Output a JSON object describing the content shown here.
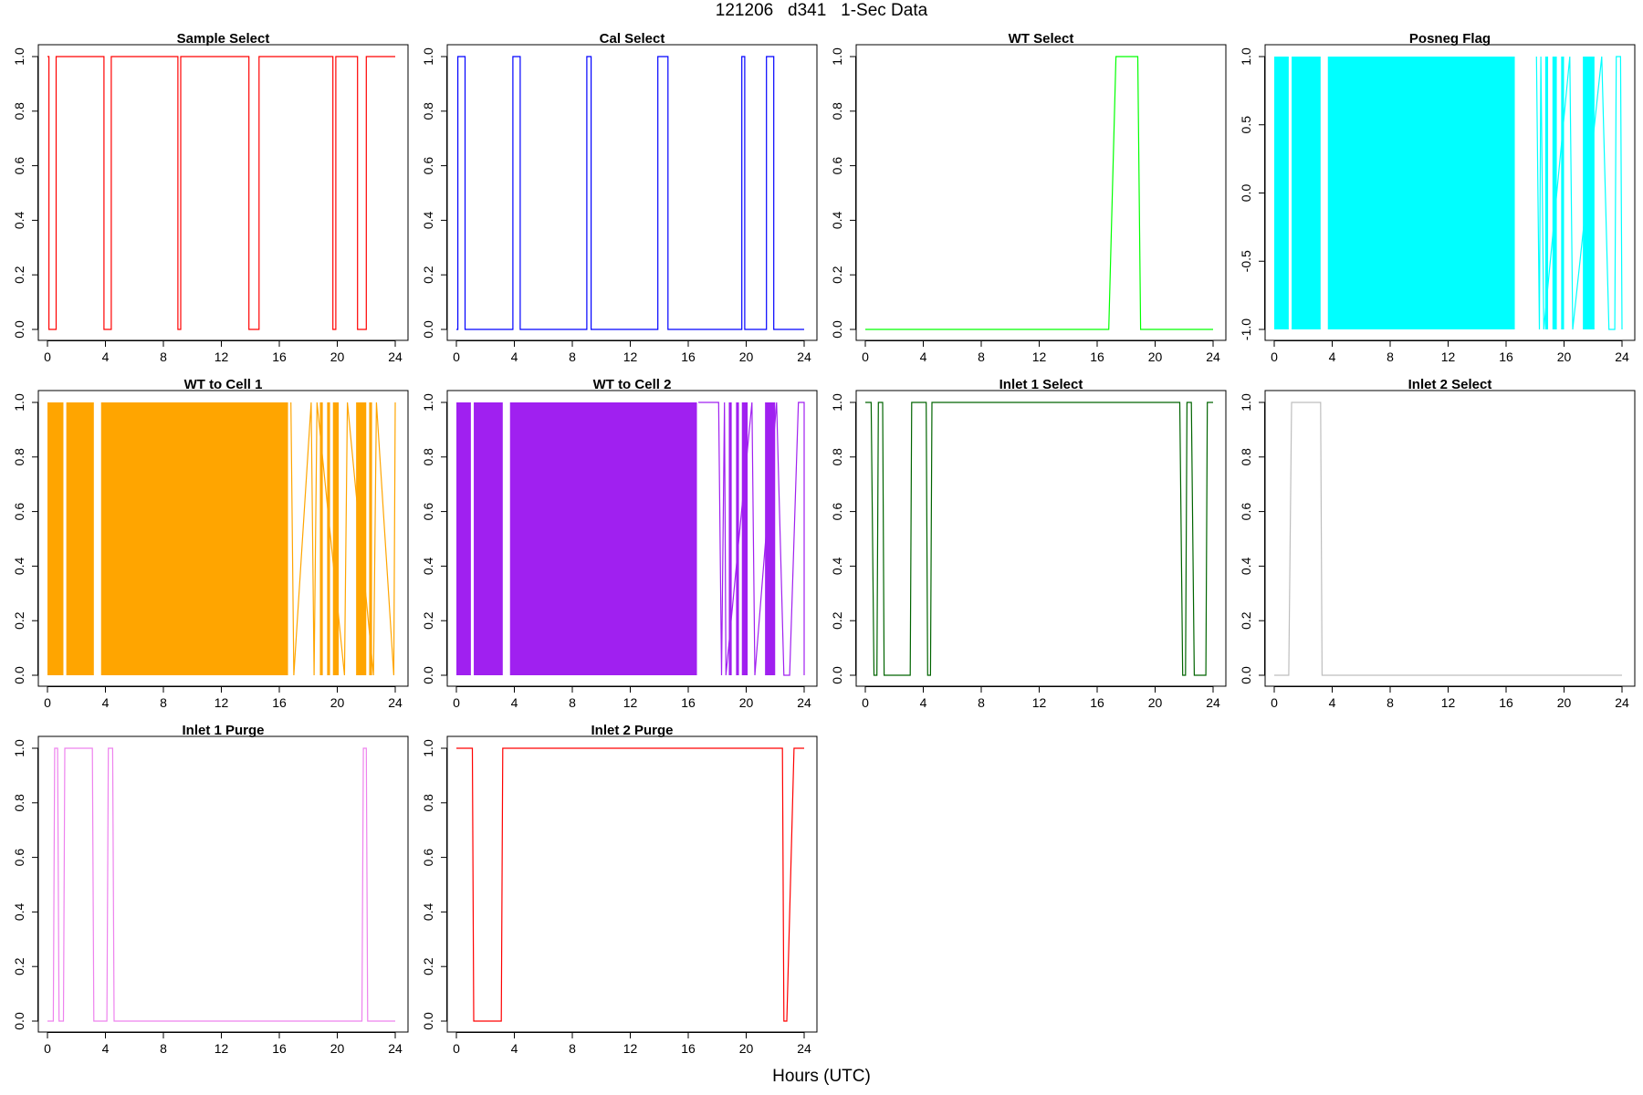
{
  "figure": {
    "title": "121206   d341   1-Sec Data",
    "xlabel": "Hours (UTC)"
  },
  "chart_data": [
    {
      "type": "line",
      "title": "Sample Select",
      "color": "#ff0000",
      "xlim": [
        0,
        24
      ],
      "xticks": [
        0,
        4,
        8,
        12,
        16,
        20,
        24
      ],
      "ylim": [
        0,
        1
      ],
      "yticks": [
        "0.0",
        "0.2",
        "0.4",
        "0.6",
        "0.8",
        "1.0"
      ],
      "x": [
        0,
        0.1,
        0.1,
        0.6,
        0.6,
        3.9,
        3.9,
        4.4,
        4.4,
        9.0,
        9.0,
        9.2,
        9.2,
        13.9,
        13.9,
        14.6,
        14.6,
        19.7,
        19.7,
        19.9,
        19.9,
        21.4,
        21.4,
        22.0,
        22.0,
        24
      ],
      "y": [
        1,
        1,
        0,
        0,
        1,
        1,
        0,
        0,
        1,
        1,
        0,
        0,
        1,
        1,
        0,
        0,
        1,
        1,
        0,
        0,
        1,
        1,
        0,
        0,
        1,
        1
      ]
    },
    {
      "type": "line",
      "title": "Cal Select",
      "color": "#0000ff",
      "xlim": [
        0,
        24
      ],
      "xticks": [
        0,
        4,
        8,
        12,
        16,
        20,
        24
      ],
      "ylim": [
        0,
        1
      ],
      "yticks": [
        "0.0",
        "0.2",
        "0.4",
        "0.6",
        "0.8",
        "1.0"
      ],
      "x": [
        0,
        0.1,
        0.1,
        0.6,
        0.6,
        3.9,
        3.9,
        4.4,
        4.4,
        9.0,
        9.0,
        9.3,
        9.3,
        13.9,
        13.9,
        14.6,
        14.6,
        19.7,
        19.7,
        19.9,
        19.9,
        21.4,
        21.4,
        21.9,
        21.9,
        24
      ],
      "y": [
        0,
        0,
        1,
        1,
        0,
        0,
        1,
        1,
        0,
        0,
        1,
        1,
        0,
        0,
        1,
        1,
        0,
        0,
        1,
        1,
        0,
        0,
        1,
        1,
        0,
        0
      ]
    },
    {
      "type": "line",
      "title": "WT Select",
      "color": "#00ff00",
      "xlim": [
        0,
        24
      ],
      "xticks": [
        0,
        4,
        8,
        12,
        16,
        20,
        24
      ],
      "ylim": [
        0,
        1
      ],
      "yticks": [
        "0.0",
        "0.2",
        "0.4",
        "0.6",
        "0.8",
        "1.0"
      ],
      "x": [
        0,
        16.8,
        17.3,
        18.8,
        19.0,
        24
      ],
      "y": [
        0,
        0,
        1,
        1,
        0,
        0
      ]
    },
    {
      "type": "area",
      "title": "Posneg Flag",
      "color": "#00ffff",
      "xlim": [
        0,
        24
      ],
      "xticks": [
        0,
        4,
        8,
        12,
        16,
        20,
        24
      ],
      "ylim": [
        -1,
        1
      ],
      "yticks": [
        "-1.0",
        "-0.5",
        "0.0",
        "0.5",
        "1.0"
      ],
      "bands": [
        [
          0,
          1.0
        ],
        [
          1.2,
          3.2
        ],
        [
          3.7,
          16.6
        ],
        [
          18.7,
          18.9
        ],
        [
          19.2,
          19.5
        ],
        [
          19.8,
          20.0
        ],
        [
          21.3,
          22.1
        ]
      ],
      "x": [
        18.1,
        18.3,
        18.4,
        18.6,
        20.4,
        20.6,
        22.6,
        23.1,
        23.5,
        23.6,
        23.9,
        24
      ],
      "y": [
        1,
        -1,
        1,
        -1,
        1,
        -1,
        1,
        -1,
        -1,
        1,
        1,
        -1
      ]
    },
    {
      "type": "area",
      "title": "WT to Cell 1",
      "color": "#ffa500",
      "xlim": [
        0,
        24
      ],
      "xticks": [
        0,
        4,
        8,
        12,
        16,
        20,
        24
      ],
      "ylim": [
        0,
        1
      ],
      "yticks": [
        "0.0",
        "0.2",
        "0.4",
        "0.6",
        "0.8",
        "1.0"
      ],
      "bands": [
        [
          0,
          1.1
        ],
        [
          1.3,
          3.2
        ],
        [
          3.7,
          16.6
        ],
        [
          18.8,
          19.0
        ],
        [
          19.3,
          19.5
        ],
        [
          19.7,
          20.1
        ],
        [
          21.3,
          22.0
        ],
        [
          22.2,
          22.4
        ]
      ],
      "x": [
        16.8,
        17.0,
        18.2,
        18.4,
        18.6,
        20.5,
        20.7,
        22.5,
        22.7,
        23.9,
        24
      ],
      "y": [
        1,
        0,
        1,
        0,
        1,
        0,
        1,
        0,
        1,
        0,
        1
      ]
    },
    {
      "type": "area",
      "title": "WT to Cell 2",
      "color": "#a020f0",
      "xlim": [
        0,
        24
      ],
      "xticks": [
        0,
        4,
        8,
        12,
        16,
        20,
        24
      ],
      "ylim": [
        0,
        1
      ],
      "yticks": [
        "0.0",
        "0.2",
        "0.4",
        "0.6",
        "0.8",
        "1.0"
      ],
      "bands": [
        [
          0,
          1.0
        ],
        [
          1.2,
          3.2
        ],
        [
          3.7,
          16.6
        ],
        [
          18.8,
          19.0
        ],
        [
          19.3,
          19.5
        ],
        [
          19.7,
          20.1
        ],
        [
          21.3,
          22.0
        ]
      ],
      "x": [
        16.7,
        18.1,
        18.3,
        18.5,
        18.6,
        20.4,
        20.6,
        22.1,
        22.6,
        23.0,
        23.6,
        24,
        24
      ],
      "y": [
        1,
        1,
        0,
        1,
        0,
        1,
        0,
        1,
        0,
        0,
        1,
        1,
        0
      ]
    },
    {
      "type": "line",
      "title": "Inlet 1 Select",
      "color": "#006400",
      "xlim": [
        0,
        24
      ],
      "xticks": [
        0,
        4,
        8,
        12,
        16,
        20,
        24
      ],
      "ylim": [
        0,
        1
      ],
      "yticks": [
        "0.0",
        "0.2",
        "0.4",
        "0.6",
        "0.8",
        "1.0"
      ],
      "x": [
        0,
        0.4,
        0.6,
        0.8,
        0.9,
        1.2,
        1.3,
        3.1,
        3.2,
        4.2,
        4.3,
        4.5,
        4.6,
        21.7,
        21.9,
        22.1,
        22.2,
        22.5,
        22.7,
        23.5,
        23.6,
        24
      ],
      "y": [
        1,
        1,
        0,
        0,
        1,
        1,
        0,
        0,
        1,
        1,
        0,
        0,
        1,
        1,
        0,
        0,
        1,
        1,
        0,
        0,
        1,
        1
      ]
    },
    {
      "type": "line",
      "title": "Inlet 2 Select",
      "color": "#bebebe",
      "xlim": [
        0,
        24
      ],
      "xticks": [
        0,
        4,
        8,
        12,
        16,
        20,
        24
      ],
      "ylim": [
        0,
        1
      ],
      "yticks": [
        "0.0",
        "0.2",
        "0.4",
        "0.6",
        "0.8",
        "1.0"
      ],
      "x": [
        0,
        1.0,
        1.2,
        3.2,
        3.3,
        24
      ],
      "y": [
        0,
        0,
        1,
        1,
        0,
        0
      ]
    },
    {
      "type": "line",
      "title": "Inlet 1 Purge",
      "color": "#ee82ee",
      "xlim": [
        0,
        24
      ],
      "xticks": [
        0,
        4,
        8,
        12,
        16,
        20,
        24
      ],
      "ylim": [
        0,
        1
      ],
      "yticks": [
        "0.0",
        "0.2",
        "0.4",
        "0.6",
        "0.8",
        "1.0"
      ],
      "x": [
        0,
        0.4,
        0.5,
        0.7,
        0.8,
        1.1,
        1.2,
        3.1,
        3.2,
        4.1,
        4.2,
        4.5,
        4.6,
        21.7,
        21.8,
        22.0,
        22.1,
        24
      ],
      "y": [
        0,
        0,
        1,
        1,
        0,
        0,
        1,
        1,
        0,
        0,
        1,
        1,
        0,
        0,
        1,
        1,
        0,
        0
      ]
    },
    {
      "type": "line",
      "title": "Inlet 2 Purge",
      "color": "#ff0000",
      "xlim": [
        0,
        24
      ],
      "xticks": [
        0,
        4,
        8,
        12,
        16,
        20,
        24
      ],
      "ylim": [
        0,
        1
      ],
      "yticks": [
        "0.0",
        "0.2",
        "0.4",
        "0.6",
        "0.8",
        "1.0"
      ],
      "x": [
        0,
        1.1,
        1.2,
        3.1,
        3.2,
        22.5,
        22.6,
        22.8,
        23.3,
        23.5,
        24
      ],
      "y": [
        1,
        1,
        0,
        0,
        1,
        1,
        0,
        0,
        1,
        1,
        1
      ]
    }
  ]
}
